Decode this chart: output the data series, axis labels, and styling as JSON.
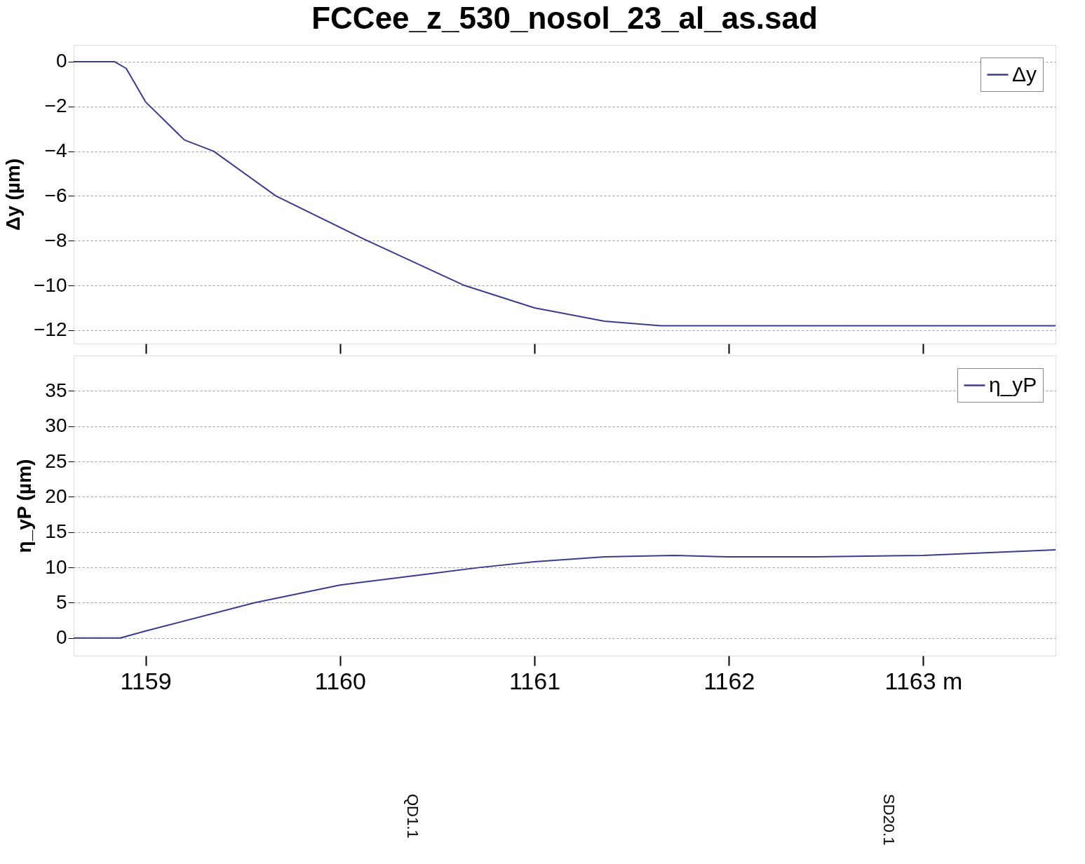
{
  "chart_data": [
    {
      "type": "line",
      "title": "FCCee_z_530_nosol_23_al_as.sad",
      "ylabel": "Δy (µm)",
      "x": [
        1158.63,
        1158.84,
        1158.9,
        1159.0,
        1159.2,
        1159.35,
        1159.67,
        1160.14,
        1160.64,
        1161.0,
        1161.36,
        1161.65,
        1162.0,
        1163.0,
        1163.68
      ],
      "series": [
        {
          "name": "Δy",
          "color": "#3c3a8c",
          "values": [
            0,
            0,
            -0.3,
            -1.8,
            -3.5,
            -4,
            -6,
            -8,
            -10,
            -11,
            -11.6,
            -11.8,
            -11.8,
            -11.8,
            -11.8
          ]
        }
      ],
      "xlim": [
        1158.63,
        1163.68
      ],
      "xticks": [
        1159,
        1160,
        1161,
        1162,
        1163
      ],
      "ylim": [
        -12.6,
        0.75
      ],
      "yticks": [
        0,
        -2,
        -4,
        -6,
        -8,
        -10,
        -12
      ],
      "grid": "y",
      "legend": "top right",
      "tick_labels": "y"
    },
    {
      "type": "line",
      "ylabel": "η_yP (µm)",
      "x": [
        1158.63,
        1158.87,
        1159.0,
        1159.56,
        1160.0,
        1160.43,
        1160.72,
        1161.0,
        1161.36,
        1161.72,
        1162.0,
        1162.44,
        1163.0,
        1163.68
      ],
      "series": [
        {
          "name": "η_yP",
          "color": "#3c3a8c",
          "values": [
            0,
            0,
            1,
            5,
            7.5,
            9,
            10,
            10.8,
            11.5,
            11.7,
            11.5,
            11.5,
            11.7,
            12.5
          ]
        }
      ],
      "xlim": [
        1158.63,
        1163.68
      ],
      "xticks": [
        1159,
        1160,
        1161,
        1162,
        {
          "value": 1163,
          "label": "1163 m"
        }
      ],
      "ylim": [
        -2.5,
        40
      ],
      "yticks": [
        0,
        5,
        10,
        15,
        20,
        25,
        30,
        35
      ],
      "grid": "y",
      "legend": "top right"
    },
    {
      "type": "other",
      "annotations": [
        "QD1.1",
        "SD20.1"
      ]
    }
  ]
}
